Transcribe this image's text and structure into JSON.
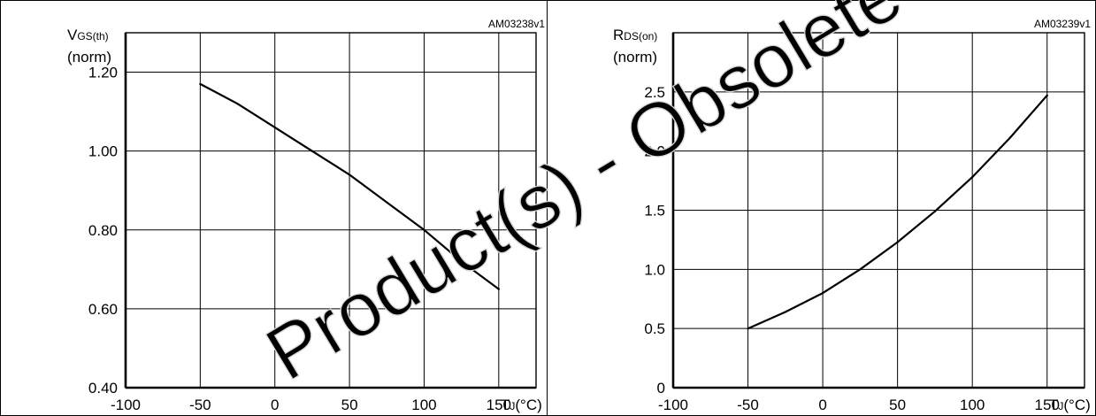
{
  "watermark": "Product(s) - Obsolete Product(s)",
  "chart_data": [
    {
      "type": "line",
      "code": "AM03238v1",
      "ylabel_main": "V",
      "ylabel_sub": "GS(th)",
      "ylabel_norm": "(norm)",
      "xlabel_main": "T",
      "xlabel_sub": "J",
      "xlabel_unit": "(°C)",
      "xlim": [
        -100,
        175
      ],
      "ylim": [
        0.4,
        1.3
      ],
      "x_grid": [
        -100,
        -50,
        0,
        50,
        100,
        150
      ],
      "y_grid": [
        0.4,
        0.6,
        0.8,
        1.0,
        1.2
      ],
      "x_ticks": [
        {
          "value": -100,
          "label": "-100"
        },
        {
          "value": -50,
          "label": "-50"
        },
        {
          "value": 0,
          "label": "0"
        },
        {
          "value": 50,
          "label": "50"
        },
        {
          "value": 100,
          "label": "100"
        },
        {
          "value": 150,
          "label": "150"
        }
      ],
      "y_ticks": [
        {
          "value": 0.4,
          "label": "0.40"
        },
        {
          "value": 0.6,
          "label": "0.60"
        },
        {
          "value": 0.8,
          "label": "0.80"
        },
        {
          "value": 1.0,
          "label": "1.00"
        },
        {
          "value": 1.2,
          "label": "1.20"
        }
      ],
      "grid": true,
      "series": [
        {
          "x": [
            -50,
            -25,
            0,
            25,
            50,
            75,
            100,
            125,
            150
          ],
          "y": [
            1.17,
            1.12,
            1.06,
            1.0,
            0.94,
            0.87,
            0.8,
            0.72,
            0.65
          ]
        }
      ]
    },
    {
      "type": "line",
      "code": "AM03239v1",
      "ylabel_main": "R",
      "ylabel_sub": "DS(on)",
      "ylabel_norm": "(norm)",
      "xlabel_main": "T",
      "xlabel_sub": "J",
      "xlabel_unit": "(°C)",
      "xlim": [
        -100,
        175
      ],
      "ylim": [
        0,
        3.0
      ],
      "x_grid": [
        -100,
        -50,
        0,
        50,
        100,
        150
      ],
      "y_grid": [
        0,
        0.5,
        1.0,
        1.5,
        2.0,
        2.5
      ],
      "x_ticks": [
        {
          "value": -100,
          "label": "-100"
        },
        {
          "value": -50,
          "label": "-50"
        },
        {
          "value": 0,
          "label": "0"
        },
        {
          "value": 50,
          "label": "50"
        },
        {
          "value": 100,
          "label": "100"
        },
        {
          "value": 150,
          "label": "150"
        }
      ],
      "y_ticks": [
        {
          "value": 0,
          "label": "0"
        },
        {
          "value": 0.5,
          "label": "0.5"
        },
        {
          "value": 1.0,
          "label": "1.0"
        },
        {
          "value": 1.5,
          "label": "1.5"
        },
        {
          "value": 2.0,
          "label": "2.0"
        },
        {
          "value": 2.5,
          "label": "2.5"
        }
      ],
      "grid": true,
      "series": [
        {
          "x": [
            -50,
            -25,
            0,
            25,
            50,
            75,
            100,
            125,
            150
          ],
          "y": [
            0.5,
            0.64,
            0.8,
            1.0,
            1.23,
            1.49,
            1.78,
            2.11,
            2.47
          ]
        }
      ]
    }
  ]
}
